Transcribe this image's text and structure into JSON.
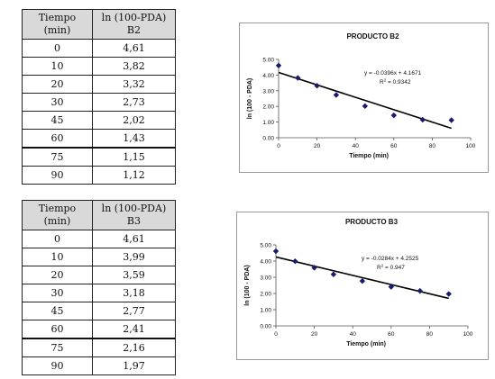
{
  "table1": {
    "headers": [
      "Tiempo\n(min)",
      "ln (100-PDA)\nB2"
    ],
    "rows": [
      [
        "0",
        "4,61"
      ],
      [
        "10",
        "3,82"
      ],
      [
        "20",
        "3,32"
      ],
      [
        "30",
        "2,73"
      ],
      [
        "45",
        "2,02"
      ],
      [
        "60",
        "1,43"
      ],
      [
        "75",
        "1,15"
      ],
      [
        "90",
        "1,12"
      ]
    ]
  },
  "table2": {
    "headers": [
      "Tiempo\n(min)",
      "ln (100-PDA)\nB3"
    ],
    "rows": [
      [
        "0",
        "4,61"
      ],
      [
        "10",
        "3,99"
      ],
      [
        "20",
        "3,59"
      ],
      [
        "30",
        "3,18"
      ],
      [
        "45",
        "2,77"
      ],
      [
        "60",
        "2,41"
      ],
      [
        "75",
        "2,16"
      ],
      [
        "90",
        "1,97"
      ]
    ]
  },
  "chart_data": [
    {
      "type": "scatter",
      "title": "PRODUCTO B2",
      "xlabel": "Tiempo (min)",
      "ylabel": "ln (100 - PDA)",
      "xlim": [
        0,
        100
      ],
      "ylim": [
        0,
        5
      ],
      "x_ticks": [
        "0",
        "20",
        "40",
        "60",
        "80",
        "100"
      ],
      "y_ticks": [
        "0.00",
        "1.00",
        "2.00",
        "3.00",
        "4.00",
        "5.00"
      ],
      "x": [
        0,
        10,
        20,
        30,
        45,
        60,
        75,
        90
      ],
      "y": [
        4.61,
        3.82,
        3.32,
        2.73,
        2.02,
        1.43,
        1.15,
        1.12
      ],
      "trendline": {
        "slope": -0.0396,
        "intercept": 4.1671,
        "x_end": 90
      },
      "equation": "y = -0.0396x + 4.1671",
      "r2_label": "R",
      "r2_value": " = 0.9342",
      "marker_color": "#1a1a6e"
    },
    {
      "type": "scatter",
      "title": "PRODUCTO B3",
      "xlabel": "Tiempo (min)",
      "ylabel": "ln (100 - PDA)",
      "xlim": [
        0,
        100
      ],
      "ylim": [
        0,
        5
      ],
      "x_ticks": [
        "0",
        "20",
        "40",
        "60",
        "80",
        "100"
      ],
      "y_ticks": [
        "0.00",
        "1.00",
        "2.00",
        "3.00",
        "4.00",
        "5.00"
      ],
      "x": [
        0,
        10,
        20,
        30,
        45,
        60,
        75,
        90
      ],
      "y": [
        4.61,
        3.99,
        3.59,
        3.18,
        2.77,
        2.41,
        2.16,
        1.97
      ],
      "trendline": {
        "slope": -0.0284,
        "intercept": 4.2525,
        "x_end": 90
      },
      "equation": "y = -0.0284x + 4.2525",
      "r2_label": "R",
      "r2_value": " = 0.947",
      "marker_color": "#1a1a6e"
    }
  ]
}
